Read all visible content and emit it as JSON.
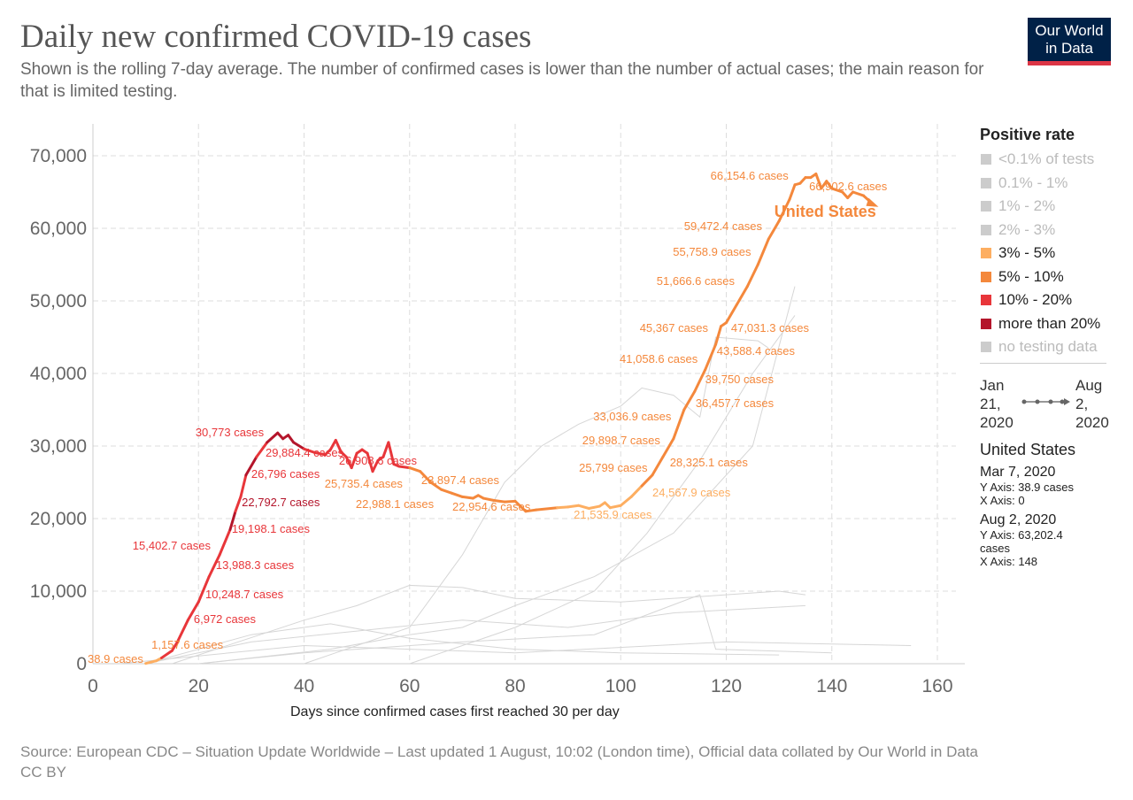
{
  "header": {
    "title": "Daily new confirmed COVID-19 cases",
    "subtitle": "Shown is the rolling 7-day average. The number of confirmed cases is lower than the number of actual cases; the main reason for that is limited testing.",
    "logo_line1": "Our World",
    "logo_line2": "in Data"
  },
  "legend": {
    "title": "Positive rate",
    "items": [
      {
        "label": "<0.1% of tests",
        "color": "#cccccc",
        "active": false
      },
      {
        "label": "0.1% - 1%",
        "color": "#cccccc",
        "active": false
      },
      {
        "label": "1% - 2%",
        "color": "#cccccc",
        "active": false
      },
      {
        "label": "2% - 3%",
        "color": "#cccccc",
        "active": false
      },
      {
        "label": "3% - 5%",
        "color": "#fdae61",
        "active": true
      },
      {
        "label": "5% - 10%",
        "color": "#f4883c",
        "active": true
      },
      {
        "label": "10% - 20%",
        "color": "#e8363a",
        "active": true
      },
      {
        "label": "more than 20%",
        "color": "#b4152b",
        "active": true
      },
      {
        "label": "no testing data",
        "color": "#cccccc",
        "active": false
      }
    ]
  },
  "timeline": {
    "start": [
      "Jan",
      "21,",
      "2020"
    ],
    "end": [
      "Aug",
      "2,",
      "2020"
    ]
  },
  "info": {
    "country": "United States",
    "points": [
      {
        "date": "Mar 7, 2020",
        "y": "Y Axis: 38.9 cases",
        "x": "X Axis: 0"
      },
      {
        "date": "Aug 2, 2020",
        "y": "Y Axis: 63,202.4",
        "y2": "cases",
        "x": "X Axis: 148"
      }
    ]
  },
  "source": {
    "line1": "Source: European CDC – Situation Update Worldwide – Last updated 1 August, 10:02 (London time), Official data collated by Our World in Data",
    "line2": "CC BY"
  },
  "chart_data": {
    "type": "line",
    "title": "Daily new confirmed COVID-19 cases",
    "xlabel": "Days since confirmed cases first reached 30 per day",
    "ylabel": "",
    "xlim": [
      0,
      163
    ],
    "ylim": [
      0,
      72000
    ],
    "xticks": [
      0,
      20,
      40,
      60,
      80,
      100,
      120,
      140,
      160
    ],
    "yticks": [
      0,
      10000,
      20000,
      30000,
      40000,
      50000,
      60000,
      70000
    ],
    "ytick_labels": [
      "0",
      "10,000",
      "20,000",
      "30,000",
      "40,000",
      "50,000",
      "60,000",
      "70,000"
    ],
    "grid": true,
    "band_colors": [
      "#fdae61",
      "#f4883c",
      "#e8363a",
      "#b4152b"
    ],
    "series": [
      {
        "name": "United States",
        "color_by": "positive rate band (0=3-5%,1=5-10%,2=10-20%,3=>20%)",
        "points": [
          [
            10,
            40,
            0
          ],
          [
            12,
            400,
            0
          ],
          [
            13,
            800,
            0
          ],
          [
            15,
            1800,
            2
          ],
          [
            16,
            3000,
            2
          ],
          [
            18,
            6000,
            2
          ],
          [
            20,
            8500,
            2
          ],
          [
            22,
            12000,
            2
          ],
          [
            24,
            15000,
            2
          ],
          [
            26,
            18500,
            2
          ],
          [
            27,
            21000,
            3
          ],
          [
            28,
            23000,
            2
          ],
          [
            29,
            26000,
            2
          ],
          [
            31,
            28500,
            3
          ],
          [
            33,
            30500,
            2
          ],
          [
            35,
            31800,
            3
          ],
          [
            36,
            31000,
            3
          ],
          [
            37,
            31500,
            3
          ],
          [
            38,
            30500,
            3
          ],
          [
            40,
            29600,
            3
          ],
          [
            42,
            29100,
            2
          ],
          [
            44,
            28800,
            2
          ],
          [
            45,
            29500,
            2
          ],
          [
            46,
            30800,
            2
          ],
          [
            47,
            29200,
            2
          ],
          [
            48,
            28500,
            2
          ],
          [
            49,
            27000,
            2
          ],
          [
            50,
            29000,
            2
          ],
          [
            51,
            29500,
            2
          ],
          [
            52,
            29000,
            2
          ],
          [
            53,
            26500,
            2
          ],
          [
            54,
            28000,
            2
          ],
          [
            55,
            28500,
            2
          ],
          [
            56,
            30500,
            2
          ],
          [
            57,
            27500,
            2
          ],
          [
            58,
            27200,
            2
          ],
          [
            60,
            27000,
            2
          ],
          [
            62,
            26500,
            1
          ],
          [
            64,
            25000,
            1
          ],
          [
            66,
            24000,
            1
          ],
          [
            68,
            23500,
            1
          ],
          [
            70,
            23000,
            1
          ],
          [
            72,
            22800,
            1
          ],
          [
            73,
            23200,
            1
          ],
          [
            74,
            22800,
            1
          ],
          [
            76,
            22500,
            1
          ],
          [
            78,
            22300,
            1
          ],
          [
            80,
            22400,
            1
          ],
          [
            82,
            21000,
            1
          ],
          [
            84,
            21200,
            1
          ],
          [
            88,
            21500,
            1
          ],
          [
            90,
            21600,
            0
          ],
          [
            92,
            21800,
            0
          ],
          [
            94,
            21400,
            0
          ],
          [
            96,
            21700,
            0
          ],
          [
            97,
            22200,
            0
          ],
          [
            98,
            21500,
            0
          ],
          [
            100,
            21800,
            0
          ],
          [
            102,
            23000,
            0
          ],
          [
            104,
            24500,
            0
          ],
          [
            106,
            26000,
            1
          ],
          [
            108,
            28500,
            1
          ],
          [
            110,
            31000,
            1
          ],
          [
            112,
            35000,
            1
          ],
          [
            114,
            37500,
            1
          ],
          [
            116,
            40500,
            1
          ],
          [
            118,
            44000,
            1
          ],
          [
            119,
            46500,
            1
          ],
          [
            120,
            47000,
            1
          ],
          [
            122,
            49500,
            1
          ],
          [
            124,
            52000,
            1
          ],
          [
            126,
            55000,
            1
          ],
          [
            128,
            58500,
            1
          ],
          [
            130,
            61000,
            1
          ],
          [
            132,
            64000,
            1
          ],
          [
            133,
            66000,
            1
          ],
          [
            134,
            66200,
            1
          ],
          [
            135,
            67000,
            1
          ],
          [
            136,
            67000,
            1
          ],
          [
            137,
            67500,
            1
          ],
          [
            138,
            65500,
            1
          ],
          [
            139,
            66500,
            1
          ],
          [
            140,
            65500,
            1
          ],
          [
            142,
            65000,
            1
          ],
          [
            143,
            64200,
            1
          ],
          [
            144,
            65000,
            1
          ],
          [
            146,
            64500,
            1
          ],
          [
            148,
            63200,
            1
          ]
        ]
      }
    ],
    "annotations": [
      {
        "text": "30,773 cases",
        "x": 32.4,
        "y": 31950,
        "anchor": "end",
        "color": "#e8363a"
      },
      {
        "text": "29,884.4 cases",
        "x": 32.7,
        "y": 29150,
        "anchor": "start",
        "color": "#e8363a"
      },
      {
        "text": "26,796 cases",
        "x": 30,
        "y": 26220,
        "anchor": "start",
        "color": "#e8363a"
      },
      {
        "text": "22,792.7 cases",
        "x": 28.2,
        "y": 22320,
        "anchor": "start",
        "color": "#b4152b"
      },
      {
        "text": "19,198.1 cases",
        "x": 26.3,
        "y": 18660,
        "anchor": "start",
        "color": "#e8363a"
      },
      {
        "text": "15,402.7 cases",
        "x": 22.3,
        "y": 16340,
        "anchor": "end",
        "color": "#e8363a"
      },
      {
        "text": "13,988.3 cases",
        "x": 23.3,
        "y": 13660,
        "anchor": "start",
        "color": "#e8363a"
      },
      {
        "text": "10,248.7 cases",
        "x": 21.3,
        "y": 9630,
        "anchor": "start",
        "color": "#e8363a"
      },
      {
        "text": "6,972 cases",
        "x": 19.1,
        "y": 6220,
        "anchor": "start",
        "color": "#e8363a"
      },
      {
        "text": "1,157.6 cases",
        "x": 11.1,
        "y": 2680,
        "anchor": "start",
        "color": "#f4883c"
      },
      {
        "text": "38.9 cases",
        "x": -1,
        "y": 730,
        "anchor": "start",
        "color": "#f4883c"
      },
      {
        "text": "26,908.6 cases",
        "x": 46.6,
        "y": 28050,
        "anchor": "start",
        "color": "#e8363a"
      },
      {
        "text": "25,735.4 cases",
        "x": 43.9,
        "y": 24880,
        "anchor": "start",
        "color": "#f4883c"
      },
      {
        "text": "23,897.4 cases",
        "x": 62.2,
        "y": 25370,
        "anchor": "start",
        "color": "#f4883c"
      },
      {
        "text": "22,988.1 cases",
        "x": 49.8,
        "y": 22070,
        "anchor": "start",
        "color": "#f4883c"
      },
      {
        "text": "22,954.6 cases",
        "x": 68.1,
        "y": 21700,
        "anchor": "start",
        "color": "#f4883c"
      },
      {
        "text": "21,535.9 cases",
        "x": 91.1,
        "y": 20610,
        "anchor": "start",
        "color": "#fdae61"
      },
      {
        "text": "24,567.9 cases",
        "x": 106,
        "y": 23660,
        "anchor": "start",
        "color": "#fdae61"
      },
      {
        "text": "25,799 cases",
        "x": 92.1,
        "y": 27070,
        "anchor": "start",
        "color": "#f4883c"
      },
      {
        "text": "28,325.1 cases",
        "x": 109.3,
        "y": 27800,
        "anchor": "start",
        "color": "#f4883c"
      },
      {
        "text": "29,898.7 cases",
        "x": 92.7,
        "y": 30850,
        "anchor": "start",
        "color": "#f4883c"
      },
      {
        "text": "33,036.9 cases",
        "x": 94.8,
        "y": 34150,
        "anchor": "start",
        "color": "#f4883c"
      },
      {
        "text": "36,457.7 cases",
        "x": 114.2,
        "y": 35980,
        "anchor": "start",
        "color": "#f4883c"
      },
      {
        "text": "39,750 cases",
        "x": 116,
        "y": 39270,
        "anchor": "start",
        "color": "#f4883c"
      },
      {
        "text": "41,058.6 cases",
        "x": 99.8,
        "y": 42070,
        "anchor": "start",
        "color": "#f4883c"
      },
      {
        "text": "43,588.4 cases",
        "x": 118.2,
        "y": 43170,
        "anchor": "start",
        "color": "#f4883c"
      },
      {
        "text": "45,367 cases",
        "x": 103.6,
        "y": 46340,
        "anchor": "start",
        "color": "#f4883c"
      },
      {
        "text": "47,031.3 cases",
        "x": 120.9,
        "y": 46340,
        "anchor": "start",
        "color": "#f4883c"
      },
      {
        "text": "51,666.6 cases",
        "x": 106.8,
        "y": 52800,
        "anchor": "start",
        "color": "#f4883c"
      },
      {
        "text": "55,758.9 cases",
        "x": 109.9,
        "y": 56830,
        "anchor": "start",
        "color": "#f4883c"
      },
      {
        "text": "59,472.4 cases",
        "x": 112,
        "y": 60370,
        "anchor": "start",
        "color": "#f4883c"
      },
      {
        "text": "66,154.6 cases",
        "x": 117,
        "y": 67320,
        "anchor": "start",
        "color": "#f4883c"
      },
      {
        "text": "66,902.6 cases",
        "x": 135.7,
        "y": 65850,
        "anchor": "start",
        "color": "#f4883c"
      },
      {
        "text": "United States",
        "x": 129.1,
        "y": 62200,
        "anchor": "start",
        "color": "#f4883c",
        "bold": true
      }
    ]
  }
}
